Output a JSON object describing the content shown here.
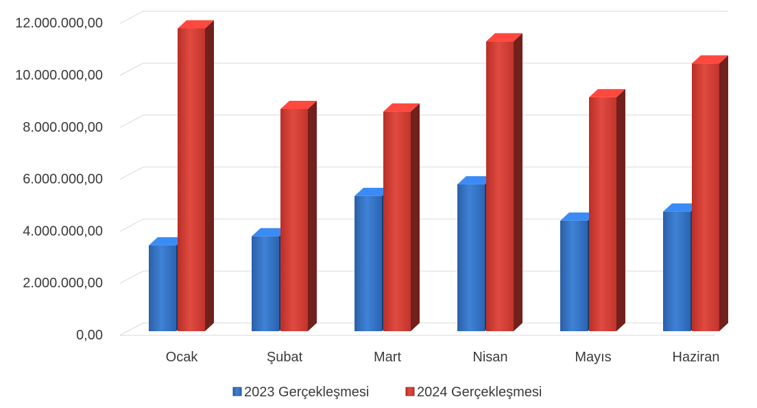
{
  "chart_data": {
    "type": "bar",
    "style": "3d-clustered-column",
    "categories": [
      "Ocak",
      "Şubat",
      "Mart",
      "Nisan",
      "Mayıs",
      "Haziran"
    ],
    "series": [
      {
        "name": "2023 Gerçekleşmesi",
        "color": "#2f6fc4",
        "values": [
          3300000,
          3650000,
          5200000,
          5650000,
          4250000,
          4600000
        ]
      },
      {
        "name": "2024 Gerçekleşmesi",
        "color": "#d03a32",
        "values": [
          11650000,
          8550000,
          8450000,
          11150000,
          9000000,
          10300000
        ]
      }
    ],
    "y_ticks": [
      "0,00",
      "2.000.000,00",
      "4.000.000,00",
      "6.000.000,00",
      "8.000.000,00",
      "10.000.000,00",
      "12.000.000,00"
    ],
    "ylim": [
      0,
      12000000
    ],
    "grid": true,
    "legend_position": "bottom"
  }
}
